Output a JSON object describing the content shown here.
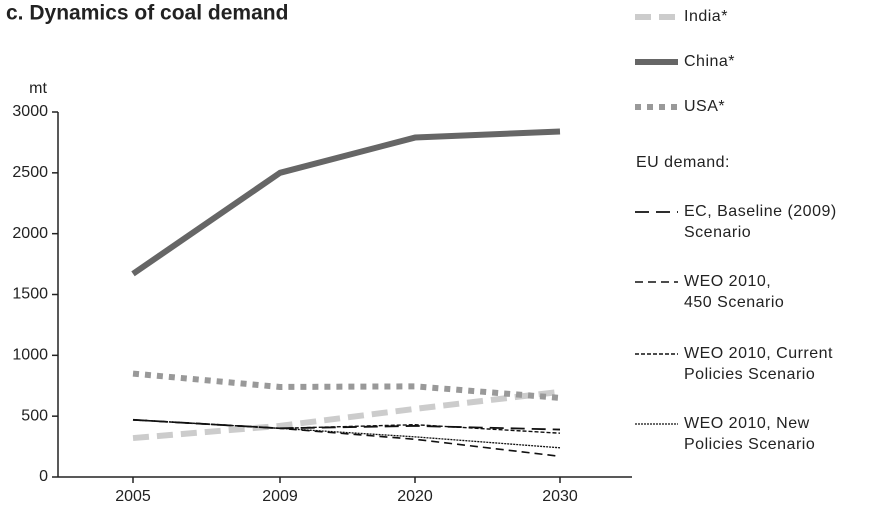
{
  "chart_data": {
    "type": "line",
    "title": "c. Dynamics of coal demand",
    "y_label": "mt",
    "categories": [
      "2005",
      "2009",
      "2020",
      "2030"
    ],
    "ylim": [
      0,
      3000
    ],
    "yticks": [
      0,
      500,
      1000,
      1500,
      2000,
      2500,
      3000
    ],
    "legend_title": "EU demand:",
    "series": [
      {
        "name": "India*",
        "color": "#cccccc",
        "values": [
          320,
          420,
          560,
          700
        ]
      },
      {
        "name": "China*",
        "color": "#666666",
        "values": [
          1670,
          2500,
          2790,
          2840
        ]
      },
      {
        "name": "USA*",
        "color": "#999999",
        "values": [
          850,
          740,
          745,
          650
        ]
      },
      {
        "name": "EC, Baseline (2009)\nScenario",
        "color": "#111111",
        "values": [
          470,
          400,
          420,
          390
        ]
      },
      {
        "name": "WEO 2010,\n450 Scenario",
        "color": "#111111",
        "values": [
          470,
          400,
          310,
          170
        ]
      },
      {
        "name": "WEO 2010, Current\nPolicies Scenario",
        "color": "#111111",
        "values": [
          470,
          400,
          430,
          360
        ]
      },
      {
        "name": "WEO 2010, New\nPolicies Scenario",
        "color": "#111111",
        "values": [
          470,
          400,
          330,
          240
        ]
      }
    ]
  }
}
